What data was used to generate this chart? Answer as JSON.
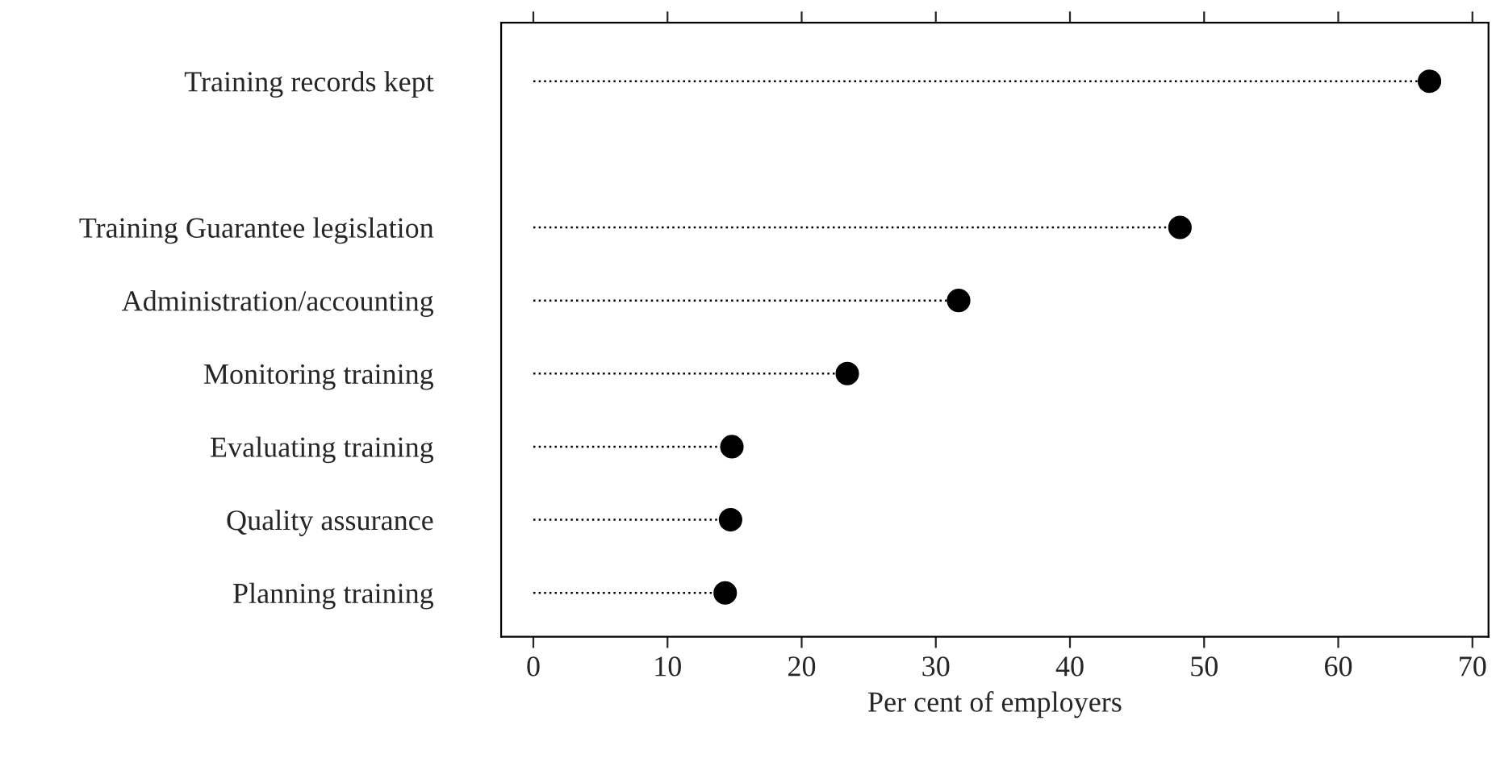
{
  "chart_data": {
    "type": "lollipop",
    "orientation": "horizontal",
    "xlabel": "Per cent of employers",
    "categories": [
      "Training records kept",
      null,
      "Training Guarantee legislation",
      "Administration/accounting",
      "Monitoring training",
      "Evaluating training",
      "Quality assurance",
      "Planning training"
    ],
    "series": [
      {
        "color": "#000000",
        "values": [
          66.8,
          null,
          48.2,
          31.7,
          23.4,
          14.8,
          14.7,
          14.3
        ]
      }
    ],
    "xlim": [
      -2.4,
      71.2
    ],
    "xticks": [
      0,
      10,
      20,
      30,
      40,
      50,
      60,
      70
    ],
    "marker": "circle",
    "line_style": "dotted",
    "legend": false
  }
}
